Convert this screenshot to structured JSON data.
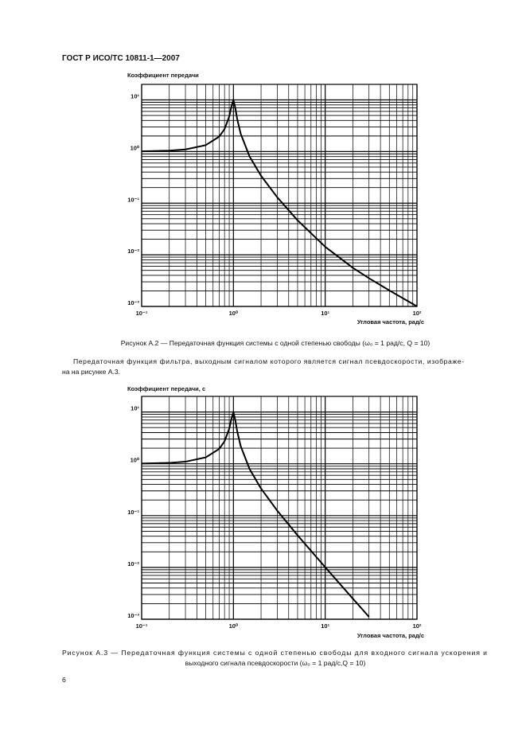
{
  "header": {
    "title": "ГОСТ Р ИСО/ТС 10811-1—2007"
  },
  "chart_data": [
    {
      "type": "line",
      "y_label": "Коэффициент передачи",
      "x_label": "Угловая частота, рад/с",
      "x": [
        0.1,
        0.2,
        0.3,
        0.5,
        0.7,
        0.8,
        0.9,
        0.95,
        1,
        1.05,
        1.1,
        1.2,
        1.5,
        2,
        3,
        5,
        10,
        20,
        30,
        50,
        100
      ],
      "values": [
        1.01,
        1.041,
        1.098,
        1.332,
        1.948,
        2.721,
        4.776,
        7.379,
        10.05,
        6.852,
        4.243,
        2.209,
        0.803,
        0.3392,
        0.1304,
        0.04658,
        0.014285,
        0.005604,
        0.003517,
        0.0020404,
        0.0010051
      ],
      "color": "#000000",
      "log_x": true,
      "log_y": true,
      "grid": true,
      "minor_grid": true,
      "xlim": [
        0.1,
        100
      ],
      "ylim": [
        0.001,
        20
      ],
      "xticks": [
        {
          "value": 0.1,
          "label": "10⁻¹"
        },
        {
          "value": 1,
          "label": "10⁰"
        },
        {
          "value": 10,
          "label": "10¹"
        },
        {
          "value": 100,
          "label": "10²"
        }
      ],
      "yticks": [
        {
          "value": 0.001,
          "label": "10⁻³"
        },
        {
          "value": 0.01,
          "label": "10⁻²"
        },
        {
          "value": 0.1,
          "label": "10⁻¹"
        },
        {
          "value": 1,
          "label": "10⁰"
        },
        {
          "value": 10,
          "label": "10¹"
        }
      ]
    },
    {
      "type": "line",
      "y_label": "Коэффициент передачи, с",
      "x_label": "Угловая частота, рад/с",
      "x": [
        0.1,
        0.2,
        0.3,
        0.5,
        0.7,
        0.8,
        0.9,
        0.95,
        1,
        1.05,
        1.1,
        1.2,
        1.5,
        2,
        3,
        5,
        10,
        20,
        30
      ],
      "values": [
        1.01,
        1.041,
        1.098,
        1.33,
        1.943,
        2.712,
        4.757,
        7.346,
        10,
        6.815,
        4.218,
        2.193,
        0.794,
        0.3326,
        0.1249,
        0.04166,
        0.010101,
        0.002506,
        0.0011123
      ],
      "color": "#000000",
      "log_x": true,
      "log_y": true,
      "grid": true,
      "minor_grid": true,
      "xlim": [
        0.1,
        100
      ],
      "ylim": [
        0.001,
        20
      ],
      "xticks": [
        {
          "value": 0.1,
          "label": "10⁻¹"
        },
        {
          "value": 1,
          "label": "10⁰"
        },
        {
          "value": 10,
          "label": "10¹"
        },
        {
          "value": 100,
          "label": "10²"
        }
      ],
      "yticks": [
        {
          "value": 0.001,
          "label": "10⁻³"
        },
        {
          "value": 0.01,
          "label": "10⁻²"
        },
        {
          "value": 0.1,
          "label": "10⁻¹"
        },
        {
          "value": 1,
          "label": "10⁰"
        },
        {
          "value": 10,
          "label": "10¹"
        }
      ]
    }
  ],
  "captions": [
    [
      "Рисунок А.2 — Передаточная функция системы с одной степенью свободы (ω₀ = 1 рад/с, Q = 10)"
    ],
    [
      "Рисунок А.3 — Передаточная функция системы с одной степенью свободы для входного сигнала ускорения и",
      "выходного сигнала псевдоскорости (ω₀ = 1 рад/с,Q = 10)"
    ]
  ],
  "paragraph": [
    "Передаточная функция фильтра, выходным сигналом которого является сигнал псевдоскорости, изображе-",
    "на на рисунке А.3."
  ],
  "page_number": "6"
}
